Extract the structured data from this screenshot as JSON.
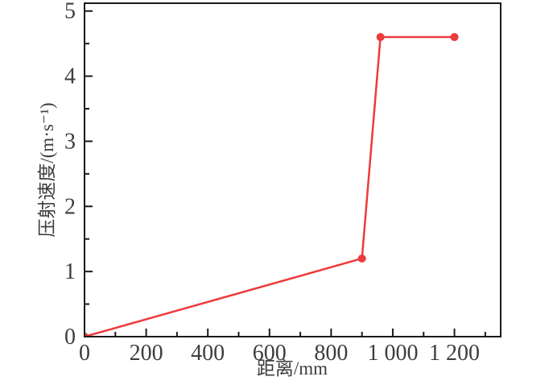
{
  "figure": {
    "background_color": "#ffffff"
  },
  "chart_data": {
    "type": "line",
    "title": "",
    "xlabel": "距离/mm",
    "ylabel": "压射速度/(m·s⁻¹)",
    "series": [
      {
        "name": "压射速度",
        "points": [
          [
            0,
            0
          ],
          [
            900,
            1.2
          ],
          [
            960,
            4.6
          ],
          [
            1200,
            4.6
          ]
        ],
        "color": "#ed3a3b",
        "marker": "circle",
        "marker_radius": 5,
        "line_width": 2.5
      }
    ],
    "xlim": [
      0,
      1350
    ],
    "ylim": [
      0,
      5.12
    ],
    "x_major_ticks": [
      0,
      200,
      400,
      600,
      800,
      1000,
      1200
    ],
    "x_tick_labels": [
      "0",
      "200",
      "400",
      "600",
      "800",
      "1 000",
      "1 200"
    ],
    "x_minor_tick_step": 100,
    "y_major_ticks": [
      0,
      1,
      2,
      3,
      4,
      5
    ],
    "y_tick_labels": [
      "0",
      "1",
      "2",
      "3",
      "4",
      "5"
    ],
    "y_minor_tick_step": 0.5,
    "grid": false,
    "legend": null,
    "axis_color": "#1a1a1a",
    "text_color": "#3d3d3d",
    "ticks_direction": "in"
  }
}
